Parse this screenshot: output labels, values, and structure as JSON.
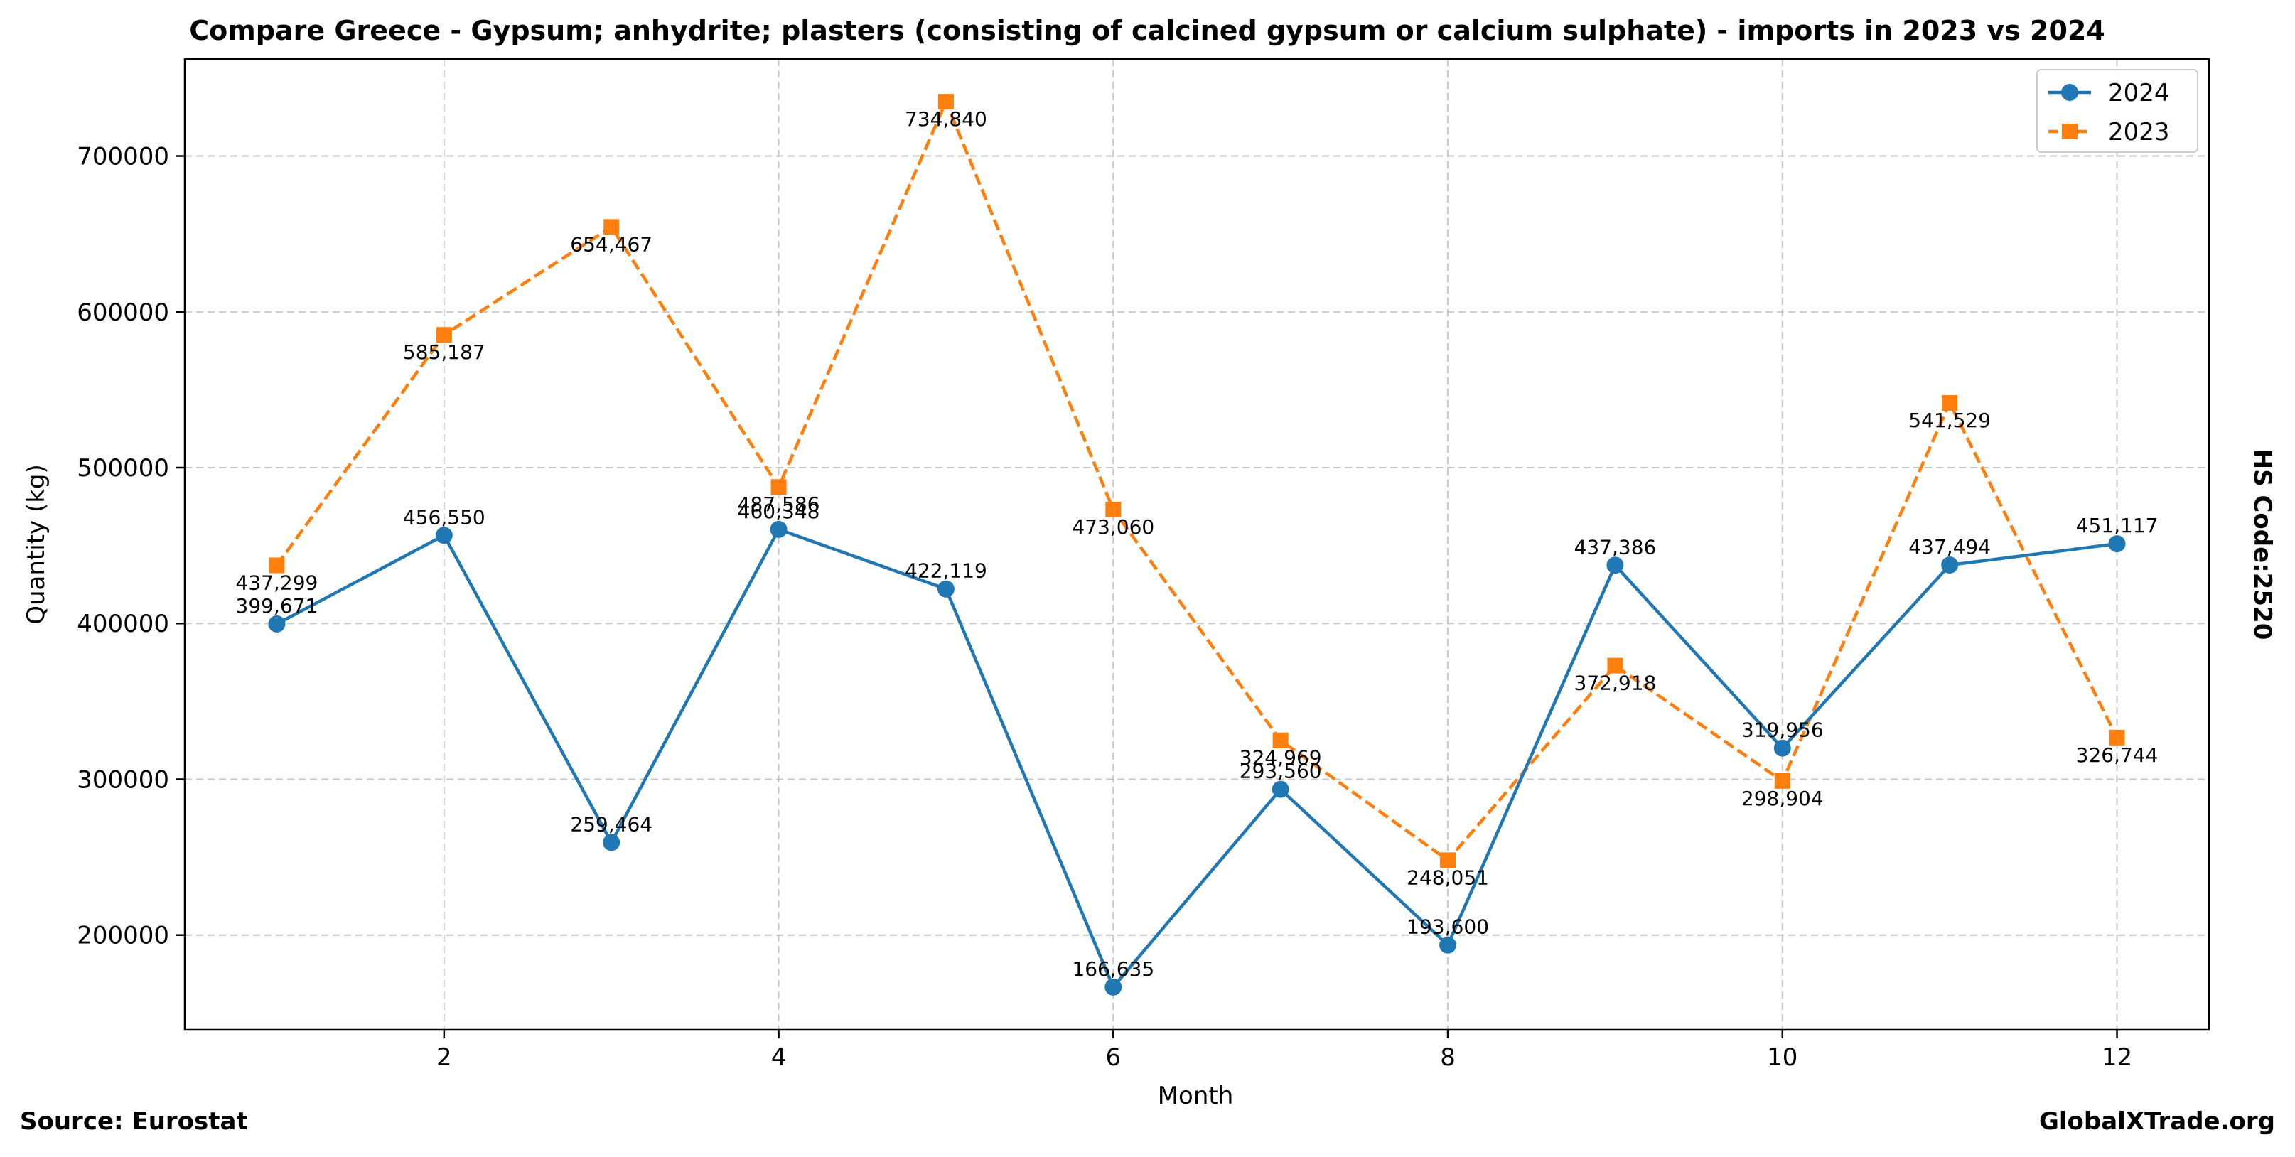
{
  "chart_data": {
    "type": "line",
    "title": "Compare Greece - Gypsum; anhydrite; plasters (consisting of calcined gypsum or calcium sulphate) - imports in 2023 vs 2024",
    "xlabel": "Month",
    "ylabel": "Quantity (kg)",
    "x": [
      1,
      2,
      3,
      4,
      5,
      6,
      7,
      8,
      9,
      10,
      11,
      12
    ],
    "xlim": [
      0.45,
      12.55
    ],
    "ylim": [
      139206,
      762269
    ],
    "xticks": [
      2,
      4,
      6,
      8,
      10,
      12
    ],
    "yticks": [
      200000,
      300000,
      400000,
      500000,
      600000,
      700000
    ],
    "grid": true,
    "legend_position": "top-right",
    "series": [
      {
        "name": "2024",
        "color": "#1f77b4",
        "line_style": "solid",
        "marker": "circle",
        "values": [
          399671,
          456550,
          259464,
          460348,
          422119,
          166635,
          293560,
          193600,
          437386,
          319956,
          437494,
          451117
        ],
        "labels": [
          "399,671",
          "456,550",
          "259,464",
          "460,348",
          "422,119",
          "166,635",
          "293,560",
          "193,600",
          "437,386",
          "319,956",
          "437,494",
          "451,117"
        ]
      },
      {
        "name": "2023",
        "color": "#ff7f0e",
        "line_style": "dashed",
        "marker": "square",
        "values": [
          437299,
          585187,
          654467,
          487586,
          734840,
          473060,
          324969,
          248051,
          372918,
          298904,
          541529,
          326744
        ],
        "labels": [
          "437,299",
          "585,187",
          "654,467",
          "487,586",
          "734,840",
          "473,060",
          "324,969",
          "248,051",
          "372,918",
          "298,904",
          "541,529",
          "326,744"
        ]
      }
    ],
    "side_label": "HS Code:2520"
  },
  "footer": {
    "source": "Source: Eurostat",
    "site": "GlobalXTrade.org"
  }
}
